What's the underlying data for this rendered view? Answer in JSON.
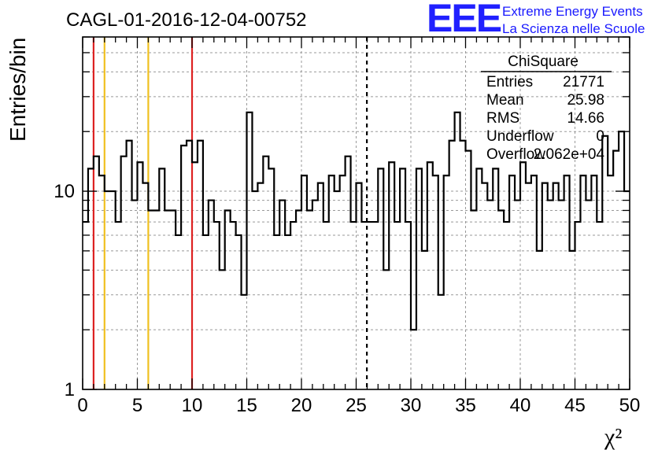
{
  "title": "CAGL-01-2016-12-04-00752",
  "logo": {
    "mark": "EEE",
    "line1": "Extreme Energy Events",
    "line2": "La Scienza nelle Scuole",
    "color": "#2020ff"
  },
  "stats": {
    "name": "ChiSquare",
    "rows": [
      {
        "label": "Entries",
        "value": "21771"
      },
      {
        "label": "Mean",
        "value": "25.98"
      },
      {
        "label": "RMS",
        "value": "14.66"
      },
      {
        "label": "Underflow",
        "value": "0"
      },
      {
        "label": "Overflow",
        "value": "2.062e+04"
      }
    ]
  },
  "chart_data": {
    "type": "histogram",
    "xlabel": "χ²",
    "ylabel": "Entries/bin",
    "xlim": [
      0,
      50
    ],
    "ylim": [
      1,
      60
    ],
    "yscale": "log",
    "grid": true,
    "bin_width": 0.5,
    "x_ticks": [
      "0",
      "5",
      "10",
      "15",
      "20",
      "25",
      "30",
      "35",
      "40",
      "45",
      "50"
    ],
    "y_ticks": [
      {
        "value": 1,
        "label": "1"
      },
      {
        "value": 10,
        "label": "10"
      }
    ],
    "values": [
      7,
      13,
      15,
      12,
      10,
      10,
      7,
      15,
      18,
      9,
      14,
      11,
      8,
      8,
      13,
      8,
      8,
      6,
      17,
      18,
      14,
      18,
      6,
      9,
      7,
      4,
      8,
      7,
      6,
      3,
      25,
      10,
      11,
      15,
      13,
      6,
      9,
      6,
      7,
      8,
      12,
      8,
      9,
      11,
      7,
      12,
      10,
      12,
      15,
      7,
      11,
      7,
      7,
      7,
      13,
      4,
      14,
      7,
      13,
      7,
      2,
      13,
      5,
      14,
      12,
      3,
      12,
      18,
      25,
      18,
      16,
      8,
      13,
      11,
      9,
      13,
      8,
      7,
      12,
      9,
      14,
      11,
      12,
      5,
      11,
      9,
      11,
      9,
      12,
      5,
      7,
      12,
      9,
      12,
      7,
      19,
      12,
      16,
      20,
      10
    ],
    "vertical_lines": [
      {
        "x": 1,
        "color": "#dd2222",
        "style": "solid"
      },
      {
        "x": 2,
        "color": "#f0c020",
        "style": "solid"
      },
      {
        "x": 6,
        "color": "#f0c020",
        "style": "solid"
      },
      {
        "x": 10,
        "color": "#dd2222",
        "style": "solid"
      },
      {
        "x": 25.98,
        "color": "#000000",
        "style": "dashed"
      }
    ]
  }
}
